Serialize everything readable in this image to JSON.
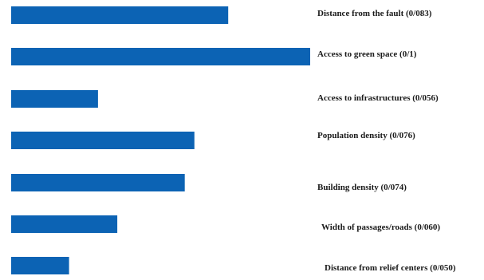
{
  "chart_data": {
    "type": "bar",
    "orientation": "horizontal",
    "bar_color": "#0c63b4",
    "categories": [
      "Distance from the fault (0/083)",
      "Access to green space (0/1)",
      "Access to infrastructures (0/056)",
      "Population density (0/076)",
      "Building density (0/074)",
      "Width of passages/roads (0/060)",
      "Distance from relief centers (0/050)"
    ],
    "values": [
      0.083,
      0.1,
      0.056,
      0.076,
      0.074,
      0.06,
      0.05
    ],
    "xlim": [
      0.038,
      0.1
    ],
    "grid": false,
    "legend": false
  }
}
